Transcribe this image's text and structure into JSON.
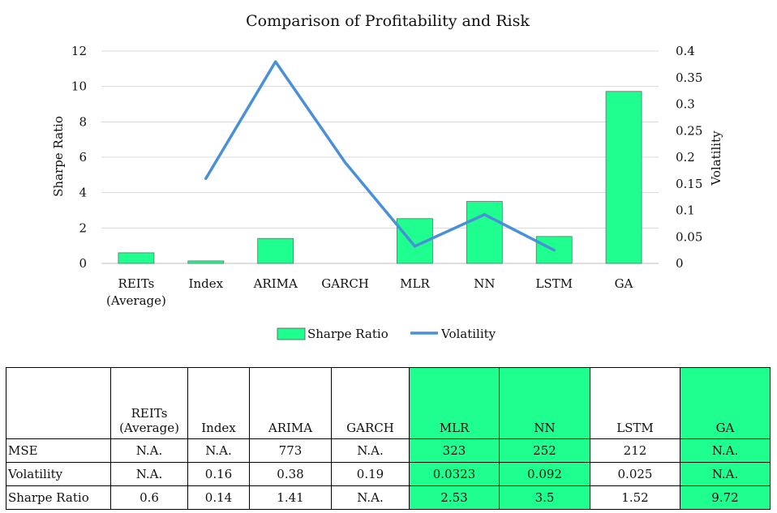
{
  "chart_data": {
    "type": "bar+line",
    "title": "Comparison of Profitability and Risk",
    "categories": [
      "REITs (Average)",
      "Index",
      "ARIMA",
      "GARCH",
      "MLR",
      "NN",
      "LSTM",
      "GA"
    ],
    "category_lines": [
      [
        "REITs",
        "(Average)"
      ],
      [
        "Index"
      ],
      [
        "ARIMA"
      ],
      [
        "GARCH"
      ],
      [
        "MLR"
      ],
      [
        "NN"
      ],
      [
        "LSTM"
      ],
      [
        "GA"
      ]
    ],
    "series": [
      {
        "name": "Sharpe Ratio",
        "kind": "bar",
        "axis": "left",
        "color": "#1fff8f",
        "values": [
          0.6,
          0.14,
          1.41,
          null,
          2.53,
          3.5,
          1.52,
          9.72
        ]
      },
      {
        "name": "Volatility",
        "kind": "line",
        "axis": "right",
        "color": "#4a90d9",
        "values": [
          null,
          0.16,
          0.38,
          0.19,
          0.0323,
          0.092,
          0.025,
          null
        ]
      }
    ],
    "ylabel": "Sharpe Ratio",
    "y2label": "Volatility",
    "ylim": [
      0,
      12
    ],
    "y2lim": [
      0,
      0.4
    ],
    "yticks": [
      "0",
      "2",
      "4",
      "6",
      "8",
      "10",
      "12"
    ],
    "y2ticks": [
      "0",
      "0.05",
      "0.1",
      "0.15",
      "0.2",
      "0.25",
      "0.3",
      "0.35",
      "0.4"
    ],
    "grid": true,
    "legend": "bottom"
  },
  "table": {
    "header": [
      [
        "REITs",
        "(Average)"
      ],
      [
        "Index"
      ],
      [
        "ARIMA"
      ],
      [
        "GARCH"
      ],
      [
        "MLR"
      ],
      [
        "NN"
      ],
      [
        "LSTM"
      ],
      [
        "GA"
      ]
    ],
    "highlight_color": "#1fff8f",
    "highlighted_columns": [
      4,
      5,
      7
    ],
    "rows": [
      {
        "label": "MSE",
        "cells": [
          "N.A.",
          "N.A.",
          "773",
          "N.A.",
          "323",
          "252",
          "212",
          "N.A."
        ]
      },
      {
        "label": "Volatility",
        "cells": [
          "N.A.",
          "0.16",
          "0.38",
          "0.19",
          "0.0323",
          "0.092",
          "0.025",
          "N.A."
        ]
      },
      {
        "label": "Sharpe Ratio",
        "cells": [
          "0.6",
          "0.14",
          "1.41",
          "N.A.",
          "2.53",
          "3.5",
          "1.52",
          "9.72"
        ]
      }
    ]
  }
}
